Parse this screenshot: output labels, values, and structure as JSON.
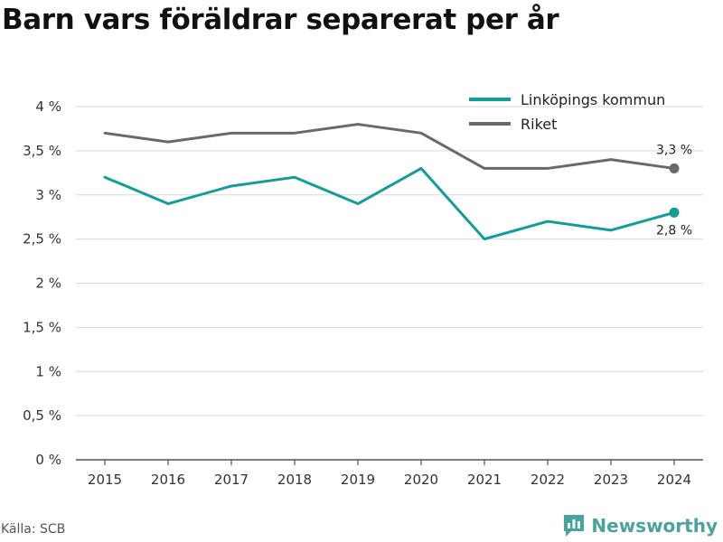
{
  "title": "Barn vars föräldrar separerat per år",
  "source": "Källa: SCB",
  "brand": "Newsworthy",
  "colors": {
    "series1": "#139e95",
    "series2": "#666a6e",
    "grid": "#d9d9d9",
    "brand": "#4aa39c"
  },
  "chart_data": {
    "type": "line",
    "categories": [
      "2015",
      "2016",
      "2017",
      "2018",
      "2019",
      "2020",
      "2021",
      "2022",
      "2023",
      "2024"
    ],
    "series": [
      {
        "name": "Linköpings kommun",
        "color": "#139e95",
        "values": [
          3.2,
          2.9,
          3.1,
          3.2,
          2.9,
          3.3,
          2.5,
          2.7,
          2.6,
          2.8
        ],
        "end_label": "2,8 %"
      },
      {
        "name": "Riket",
        "color": "#666a6e",
        "values": [
          3.7,
          3.6,
          3.7,
          3.7,
          3.8,
          3.7,
          3.3,
          3.3,
          3.4,
          3.3
        ],
        "end_label": "3,3 %"
      }
    ],
    "yticks": [
      0,
      0.5,
      1,
      1.5,
      2,
      2.5,
      3,
      3.5,
      4
    ],
    "ytick_labels": [
      "0 %",
      "0,5 %",
      "1 %",
      "1,5 %",
      "2 %",
      "2,5 %",
      "3 %",
      "3,5 %",
      "4 %"
    ],
    "ylim": [
      0,
      4
    ],
    "grid": true,
    "legend_position": "top-right"
  }
}
